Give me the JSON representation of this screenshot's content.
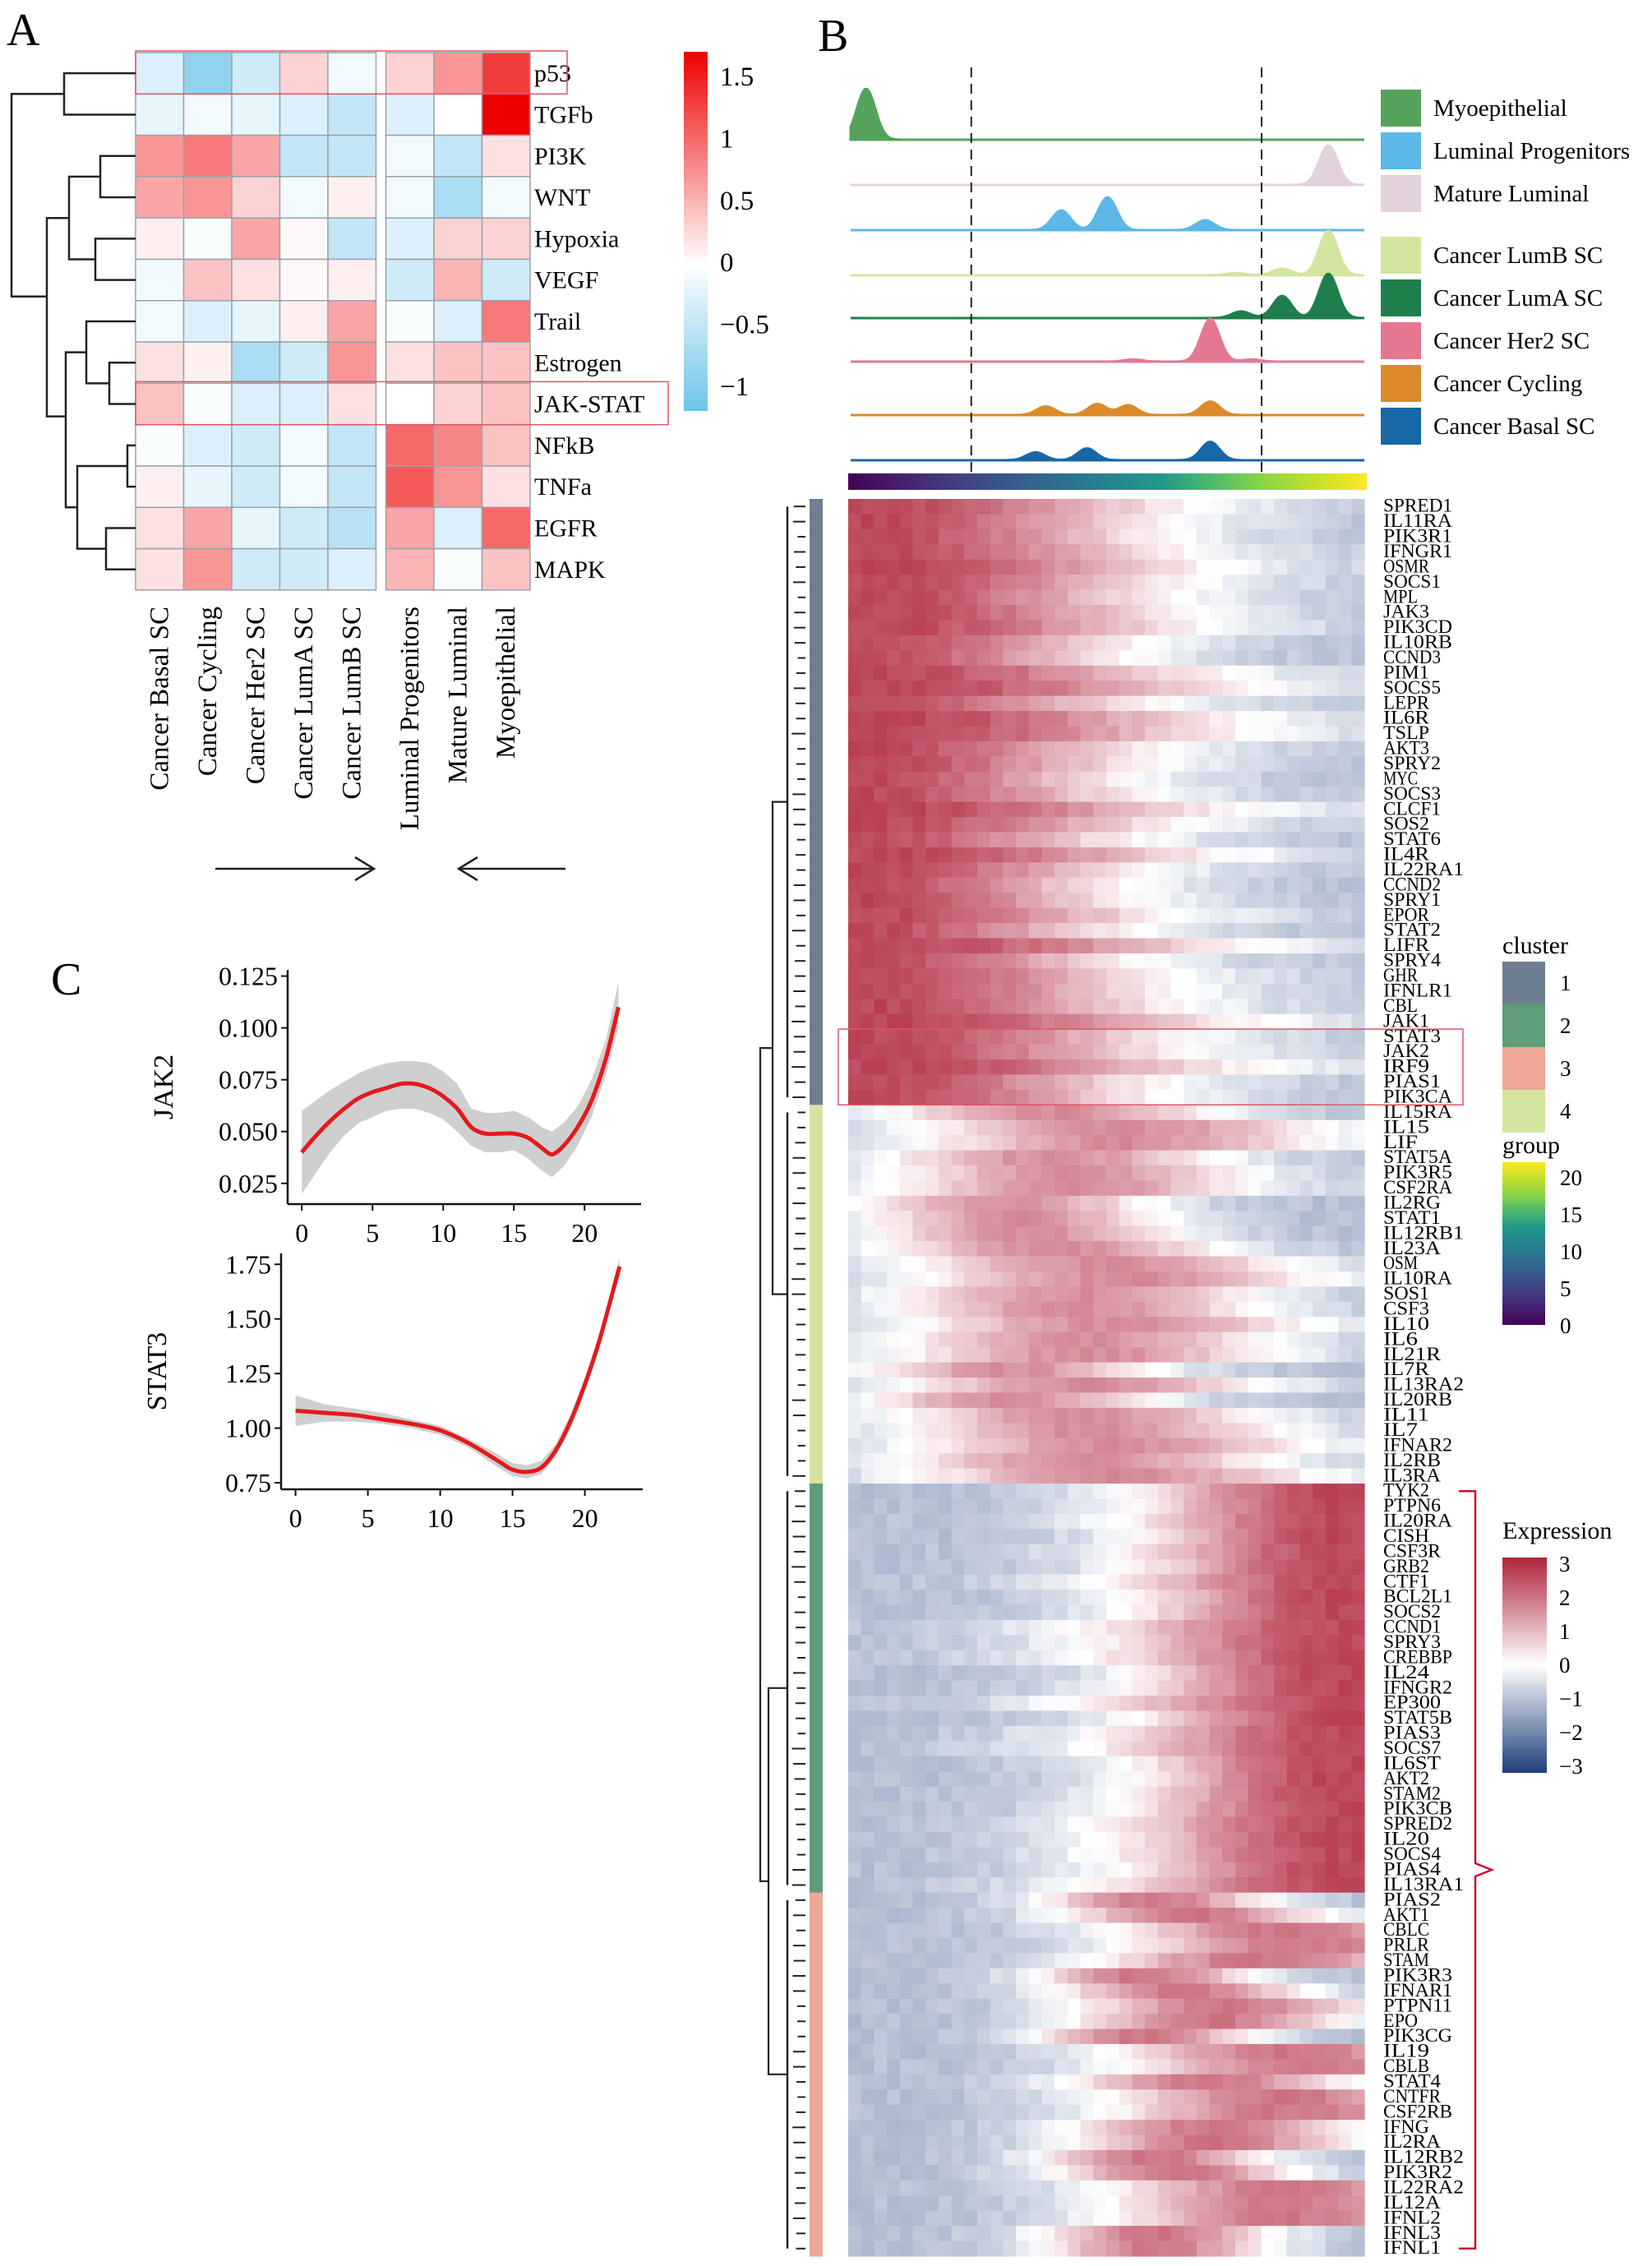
{
  "panel_labels": {
    "a": "A",
    "b": "B",
    "c": "C"
  },
  "chart_data": [
    {
      "id": "A",
      "type": "heatmap",
      "title": "",
      "rows": [
        "p53",
        "TGFb",
        "PI3K",
        "WNT",
        "Hypoxia",
        "VEGF",
        "Trail",
        "Estrogen",
        "JAK-STAT",
        "NFkB",
        "TNFa",
        "EGFR",
        "MAPK"
      ],
      "columns": [
        "Cancer Basal SC",
        "Cancer Cycling",
        "Cancer Her2 SC",
        "Cancer LumA SC",
        "Cancer LumB SC",
        "Luminal Progenitors",
        "Mature Luminal",
        "Myoepithelial"
      ],
      "column_split_after": 5,
      "values": [
        [
          -0.3,
          -0.9,
          -0.4,
          0.3,
          -0.1,
          0.3,
          0.7,
          1.3
        ],
        [
          -0.2,
          -0.1,
          -0.2,
          -0.3,
          -0.5,
          -0.3,
          0.0,
          1.7
        ],
        [
          0.7,
          0.9,
          0.6,
          -0.5,
          -0.5,
          -0.1,
          -0.5,
          0.2
        ],
        [
          0.6,
          0.7,
          0.3,
          -0.1,
          0.1,
          -0.1,
          -0.7,
          -0.1
        ],
        [
          0.1,
          -0.05,
          0.6,
          0.05,
          -0.5,
          -0.3,
          0.3,
          0.3
        ],
        [
          -0.1,
          0.4,
          0.2,
          0.05,
          0.1,
          -0.4,
          0.5,
          -0.4
        ],
        [
          -0.1,
          -0.3,
          -0.2,
          0.1,
          0.6,
          -0.05,
          -0.3,
          0.9
        ],
        [
          0.2,
          0.1,
          -0.7,
          -0.4,
          0.7,
          0.2,
          0.4,
          0.4
        ],
        [
          0.4,
          -0.05,
          -0.3,
          -0.3,
          0.2,
          0.0,
          0.3,
          0.4
        ],
        [
          -0.05,
          -0.3,
          -0.4,
          -0.1,
          -0.5,
          1.0,
          0.8,
          0.4
        ],
        [
          0.1,
          -0.2,
          -0.4,
          -0.1,
          -0.5,
          1.1,
          0.7,
          0.2
        ],
        [
          0.2,
          0.6,
          -0.2,
          -0.4,
          -0.6,
          0.6,
          -0.3,
          1.0
        ],
        [
          0.2,
          0.7,
          -0.4,
          -0.4,
          -0.3,
          0.5,
          -0.05,
          0.4
        ]
      ],
      "highlighted_rows": [
        "p53",
        "JAK-STAT"
      ],
      "arrows": [
        {
          "from": "Cancer Cycling",
          "to": "Cancer LumB SC",
          "direction": "right"
        },
        {
          "from": "Myoepithelial",
          "to": "Mature Luminal",
          "direction": "left"
        }
      ],
      "legend": {
        "type": "colorbar",
        "ticks": [
          1.5,
          1,
          0.5,
          0,
          -0.5,
          -1
        ],
        "tick_labels": [
          "1.5",
          "1",
          "0.5",
          "0",
          "−0.5",
          "−1"
        ],
        "range": [
          -1.2,
          1.7
        ],
        "colors": {
          "low": "#6ec3ea",
          "mid": "#ffffff",
          "high": "#ee0000"
        },
        "placement": "right"
      }
    },
    {
      "id": "B-density",
      "type": "area",
      "title": "",
      "series": [
        {
          "name": "Myoepithelial",
          "color": "#55a35a",
          "peaks": [
            [
              0.03,
              1.0
            ]
          ]
        },
        {
          "name": "Mature Luminal",
          "color": "#e3d1dc",
          "peaks": [
            [
              0.93,
              1.0
            ]
          ]
        },
        {
          "name": "Luminal Progenitors",
          "color": "#5cb8e6",
          "peaks": [
            [
              0.41,
              0.6
            ],
            [
              0.5,
              1.0
            ],
            [
              0.69,
              0.3
            ]
          ]
        },
        {
          "name": "Cancer LumB SC",
          "color": "#d4e59f",
          "peaks": [
            [
              0.75,
              0.05
            ],
            [
              0.84,
              0.15
            ],
            [
              0.93,
              1.0
            ]
          ]
        },
        {
          "name": "Cancer LumA SC",
          "color": "#1f7f4c",
          "peaks": [
            [
              0.76,
              0.15
            ],
            [
              0.84,
              0.5
            ],
            [
              0.93,
              1.0
            ]
          ]
        },
        {
          "name": "Cancer Her2 SC",
          "color": "#e57891",
          "peaks": [
            [
              0.55,
              0.05
            ],
            [
              0.7,
              1.0
            ],
            [
              0.78,
              0.05
            ]
          ]
        },
        {
          "name": "Cancer Cycling",
          "color": "#dc8a2a",
          "peaks": [
            [
              0.38,
              0.35
            ],
            [
              0.48,
              0.45
            ],
            [
              0.54,
              0.4
            ],
            [
              0.7,
              0.55
            ]
          ]
        },
        {
          "name": "Cancer Basal SC",
          "color": "#1668a8",
          "peaks": [
            [
              0.36,
              0.3
            ],
            [
              0.46,
              0.45
            ],
            [
              0.7,
              0.7
            ]
          ]
        }
      ],
      "legend_order": [
        "Myoepithelial",
        "Luminal Progenitors",
        "Mature Luminal",
        "Cancer LumB SC",
        "Cancer LumA SC",
        "Cancer Her2 SC",
        "Cancer Cycling",
        "Cancer Basal SC"
      ],
      "legend_placement": "right",
      "dashed_lines_at_group": [
        5.4,
        18.4
      ],
      "xlim": [
        0,
        23
      ]
    },
    {
      "id": "B-heatmap",
      "type": "heatmap",
      "title": "",
      "genes": [
        {
          "cluster": 1,
          "names": [
            "SPRED1",
            "IL11RA",
            "PIK3R1",
            "IFNGR1",
            "OSMR",
            "SOCS1",
            "MPL",
            "JAK3",
            "PIK3CD",
            "IL10RB",
            "CCND3",
            "PIM1",
            "SOCS5",
            "LEPR",
            "IL6R",
            "TSLP",
            "AKT3",
            "SPRY2",
            "MYC",
            "SOCS3",
            "CLCF1",
            "SOS2",
            "STAT6",
            "IL4R",
            "IL22RA1",
            "CCND2",
            "SPRY1",
            "EPOR",
            "STAT2",
            "LIFR",
            "SPRY4",
            "GHR",
            "IFNLR1",
            "CBL",
            "JAK1",
            "STAT3",
            "JAK2",
            "IRF9",
            "PIAS1",
            "PIK3CA"
          ]
        },
        {
          "cluster": 4,
          "names": [
            "IL15RA",
            "IL15",
            "LIF",
            "STAT5A",
            "PIK3R5",
            "CSF2RA",
            "IL2RG",
            "STAT1",
            "IL12RB1",
            "IL23A",
            "OSM",
            "IL10RA",
            "SOS1",
            "CSF3",
            "IL10",
            "IL6",
            "IL21R",
            "IL7R",
            "IL13RA2",
            "IL20RB",
            "IL11",
            "IL7",
            "IFNAR2",
            "IL2RB",
            "IL3RA"
          ]
        },
        {
          "cluster": 2,
          "names": [
            "TYK2",
            "PTPN6",
            "IL20RA",
            "CISH",
            "CSF3R",
            "GRB2",
            "CTF1",
            "BCL2L1",
            "SOCS2",
            "CCND1",
            "SPRY3",
            "CREBBP",
            "IL24",
            "IFNGR2",
            "EP300",
            "STAT5B",
            "PIAS3",
            "SOCS7",
            "IL6ST",
            "AKT2",
            "STAM2",
            "PIK3CB",
            "SPRED2",
            "IL20",
            "SOCS4",
            "PIAS4",
            "IL13RA1"
          ]
        },
        {
          "cluster": 3,
          "names": [
            "PIAS2",
            "AKT1",
            "CBLC",
            "PRLR",
            "STAM",
            "PIK3R3",
            "IFNAR1",
            "PTPN11",
            "EPO",
            "PIK3CG",
            "IL19",
            "CBLB",
            "STAT4",
            "CNTFR",
            "CSF2RB",
            "IFNG",
            "IL2RA",
            "IL12RB2",
            "PIK3R2",
            "IL22RA2",
            "IL12A",
            "IFNL2",
            "IFNL3",
            "IFNL1"
          ]
        }
      ],
      "cluster_pattern": {
        "1": "high early pseudotime",
        "4": "high mid pseudotime",
        "2": "high late pseudotime",
        "3": "high mid-late pseudotime"
      },
      "highlighted_genes": [
        "STAT3",
        "JAK2",
        "IRF9",
        "PIAS1",
        "PIK3CA"
      ],
      "bracket_genes": {
        "from": "TYK2",
        "to": "IFNL1"
      },
      "legends": {
        "cluster": {
          "title": "cluster",
          "items": [
            {
              "label": "1",
              "color": "#6e7f92"
            },
            {
              "label": "2",
              "color": "#5e9e78"
            },
            {
              "label": "3",
              "color": "#efa897"
            },
            {
              "label": "4",
              "color": "#d4e59f"
            }
          ]
        },
        "group": {
          "title": "group",
          "ticks": [
            "20",
            "15",
            "10",
            "5",
            "0"
          ],
          "range": [
            0,
            22
          ],
          "colormap": "viridis"
        },
        "expression": {
          "title": "Expression",
          "ticks": [
            "3",
            "2",
            "1",
            "0",
            "−1",
            "−2",
            "−3"
          ],
          "range": [
            -3,
            3
          ],
          "colors": {
            "low": "#1e3f7a",
            "mid": "#ffffff",
            "high": "#b0243c"
          }
        }
      }
    },
    {
      "id": "C-JAK2",
      "type": "line",
      "title": "",
      "xlabel": "",
      "ylabel": "JAK2",
      "xlim": [
        -1,
        24
      ],
      "ylim": [
        0.015,
        0.128
      ],
      "xticks": [
        "0",
        "5",
        "10",
        "15",
        "20"
      ],
      "yticks": [
        "0.025",
        "0.050",
        "0.075",
        "0.100",
        "0.125"
      ],
      "x": [
        0,
        1,
        2,
        3,
        4,
        5,
        6,
        7,
        8,
        9,
        10,
        11,
        12,
        13,
        14,
        15,
        16,
        17,
        17.7,
        18.5,
        19.5,
        20.5,
        21.5,
        22.4
      ],
      "y": [
        0.04,
        0.048,
        0.055,
        0.061,
        0.066,
        0.069,
        0.071,
        0.073,
        0.073,
        0.071,
        0.067,
        0.061,
        0.052,
        0.049,
        0.049,
        0.049,
        0.047,
        0.042,
        0.039,
        0.043,
        0.052,
        0.065,
        0.085,
        0.11
      ],
      "ci_low": [
        0.02,
        0.03,
        0.04,
        0.048,
        0.054,
        0.057,
        0.06,
        0.061,
        0.061,
        0.059,
        0.056,
        0.05,
        0.043,
        0.04,
        0.04,
        0.041,
        0.037,
        0.031,
        0.028,
        0.033,
        0.043,
        0.057,
        0.077,
        0.1
      ],
      "ci_high": [
        0.06,
        0.065,
        0.07,
        0.074,
        0.078,
        0.081,
        0.083,
        0.084,
        0.084,
        0.083,
        0.079,
        0.073,
        0.061,
        0.059,
        0.059,
        0.06,
        0.057,
        0.052,
        0.05,
        0.054,
        0.062,
        0.075,
        0.094,
        0.122
      ],
      "line_color": "#e31a1c",
      "ci_color": "#cfcfcf"
    },
    {
      "id": "C-STAT3",
      "type": "line",
      "title": "",
      "xlabel": "",
      "ylabel": "STAT3",
      "xlim": [
        -1,
        24
      ],
      "ylim": [
        0.72,
        1.8
      ],
      "xticks": [
        "0",
        "5",
        "10",
        "15",
        "20"
      ],
      "yticks": [
        "0.75",
        "1.00",
        "1.25",
        "1.50",
        "1.75"
      ],
      "x": [
        0,
        2,
        4,
        6,
        8,
        10,
        12,
        14,
        15,
        16,
        17,
        18,
        19,
        20,
        21,
        22.4
      ],
      "y": [
        1.08,
        1.07,
        1.06,
        1.04,
        1.02,
        0.99,
        0.93,
        0.85,
        0.81,
        0.8,
        0.82,
        0.9,
        1.03,
        1.2,
        1.4,
        1.74
      ],
      "ci_low": [
        1.01,
        1.03,
        1.03,
        1.02,
        1.0,
        0.97,
        0.91,
        0.82,
        0.78,
        0.77,
        0.79,
        0.87,
        1.0,
        1.17,
        1.37,
        1.7
      ],
      "ci_high": [
        1.15,
        1.11,
        1.09,
        1.07,
        1.04,
        1.01,
        0.95,
        0.88,
        0.84,
        0.83,
        0.85,
        0.93,
        1.06,
        1.23,
        1.43,
        1.78
      ],
      "line_color": "#e31a1c",
      "ci_color": "#cfcfcf"
    }
  ]
}
